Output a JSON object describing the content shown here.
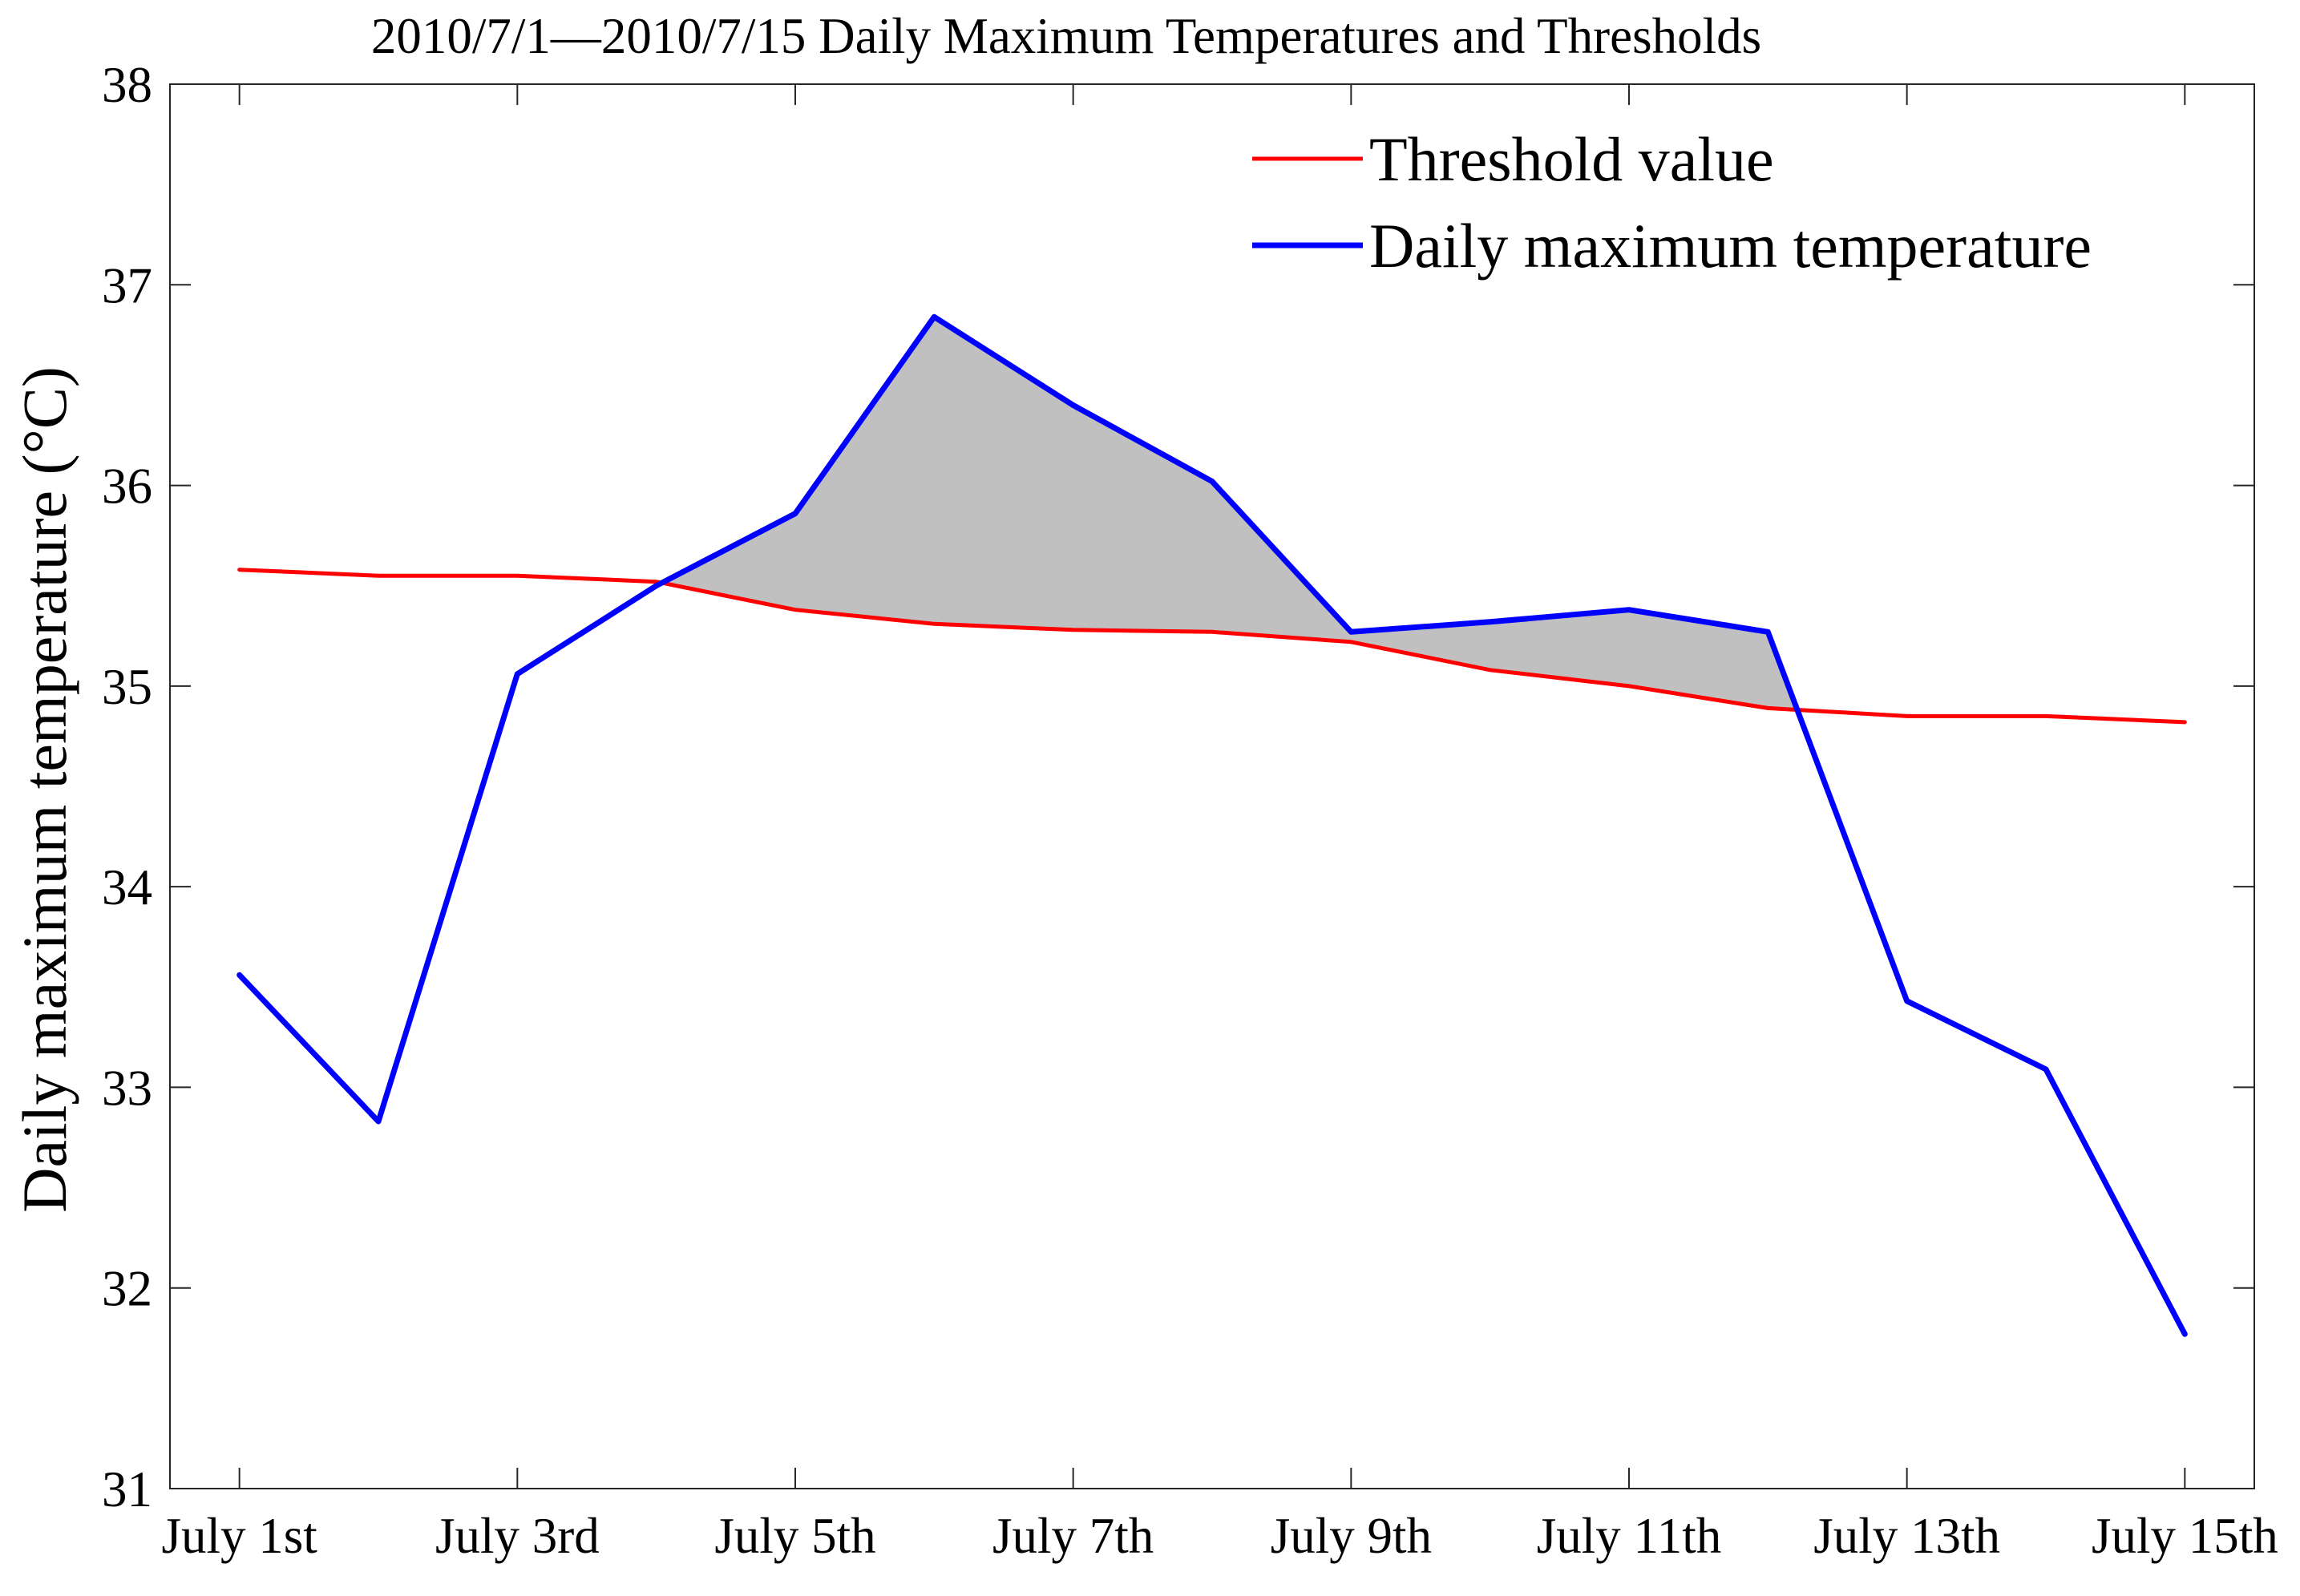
{
  "chart_data": {
    "type": "line",
    "title": "2010/7/1—2010/7/15 Daily Maximum Temperatures and Thresholds",
    "xlabel": "",
    "ylabel": "Daily maximum temperature (°C)",
    "ylim": [
      31,
      38
    ],
    "yticks": [
      31,
      32,
      33,
      34,
      35,
      36,
      37,
      38
    ],
    "ytick_labels": [
      "31",
      "32",
      "33",
      "34",
      "35",
      "36",
      "37",
      "38"
    ],
    "xlim": [
      0.5,
      15.5
    ],
    "x": [
      1,
      2,
      3,
      4,
      5,
      6,
      7,
      8,
      9,
      10,
      11,
      12,
      13,
      14,
      15
    ],
    "xticks": [
      1,
      3,
      5,
      7,
      9,
      11,
      13,
      15
    ],
    "xtick_labels": [
      "July 1st",
      "July 3rd",
      "July 5th",
      "July 7th",
      "July 9th",
      "July 11th",
      "July 13th",
      "July 15th"
    ],
    "grid": false,
    "legend_position": "top-right",
    "series": [
      {
        "name": "Threshold value",
        "color": "#ff0000",
        "values": [
          35.58,
          35.55,
          35.55,
          35.52,
          35.38,
          35.31,
          35.28,
          35.27,
          35.22,
          35.08,
          35.0,
          34.89,
          34.85,
          34.85,
          34.82
        ]
      },
      {
        "name": "Daily maximum temperature",
        "color": "#0000ff",
        "values": [
          33.56,
          32.83,
          35.06,
          35.5,
          35.86,
          36.84,
          36.4,
          36.02,
          35.27,
          35.32,
          35.38,
          35.27,
          33.43,
          33.09,
          31.77
        ]
      }
    ],
    "shading": {
      "description": "area where daily maximum temperature exceeds threshold",
      "color": "#c0c0c0"
    }
  }
}
